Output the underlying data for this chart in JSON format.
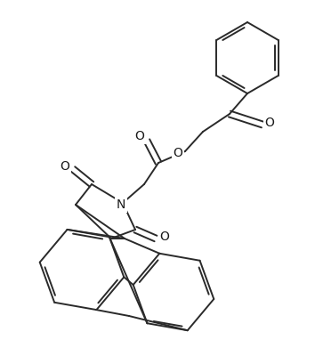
{
  "bg_color": "#ffffff",
  "line_color": "#2a2a2a",
  "line_width": 1.4,
  "fig_width": 3.54,
  "fig_height": 3.91,
  "dpi": 100,
  "xlim": [
    0,
    354
  ],
  "ylim": [
    0,
    391
  ]
}
